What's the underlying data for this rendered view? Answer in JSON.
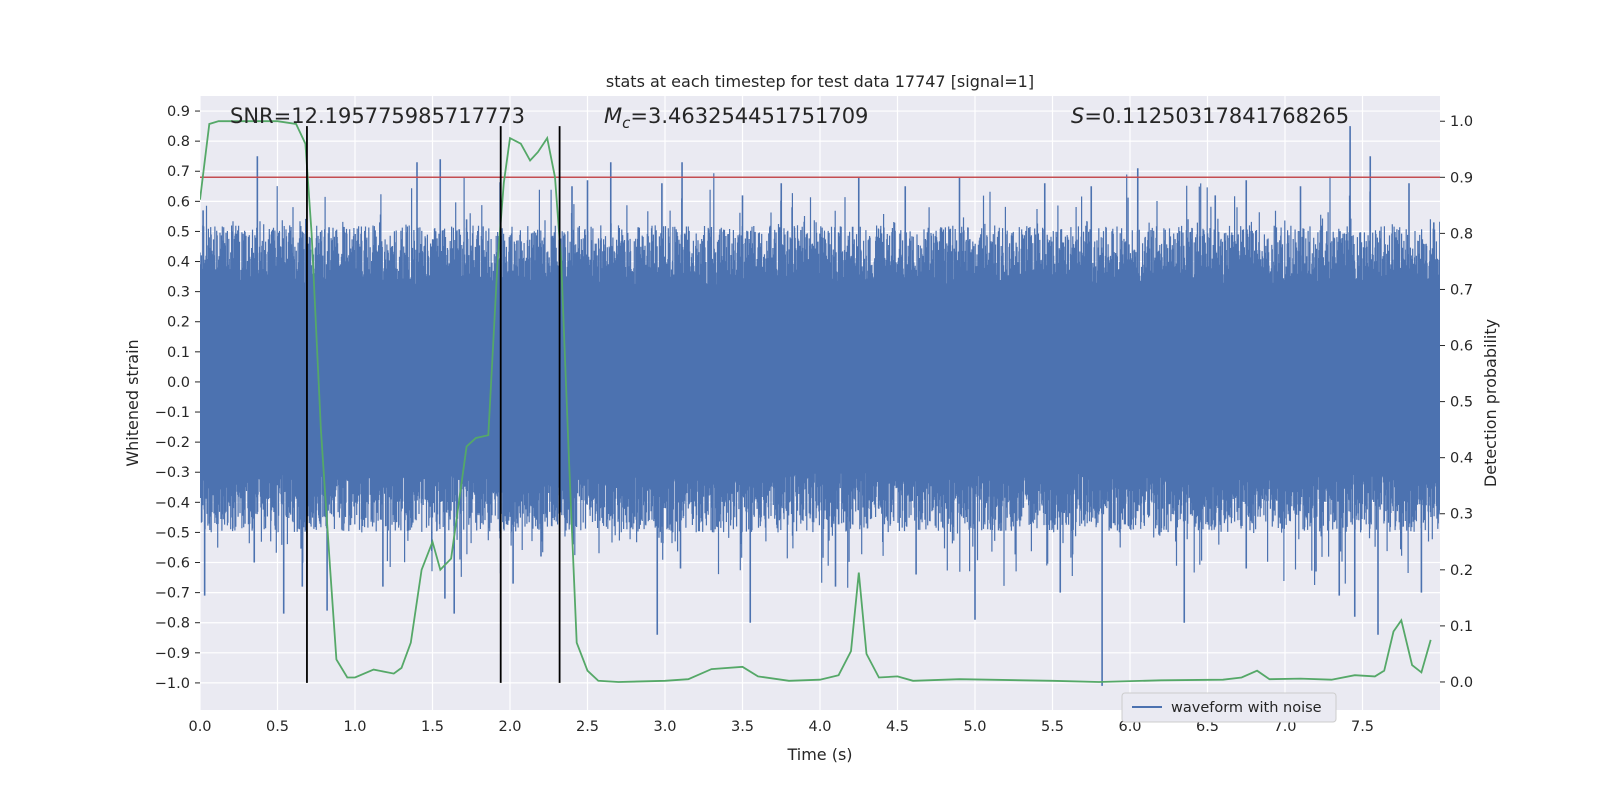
{
  "chart_data": {
    "type": "line",
    "title": "stats at each timestep for test data 17747 [signal=1]",
    "xlabel": "Time (s)",
    "ylabel": "Whitened strain",
    "y2label": "Detection probability",
    "xlim": [
      0.0,
      8.0
    ],
    "ylim": [
      -1.09,
      0.95
    ],
    "y2lim": [
      -0.05,
      1.045
    ],
    "xticks": [
      "0.0",
      "0.5",
      "1.0",
      "1.5",
      "2.0",
      "2.5",
      "3.0",
      "3.5",
      "4.0",
      "4.5",
      "5.0",
      "5.5",
      "6.0",
      "6.5",
      "7.0",
      "7.5"
    ],
    "yticks": [
      "0.9",
      "0.8",
      "0.7",
      "0.6",
      "0.5",
      "0.4",
      "0.3",
      "0.2",
      "0.1",
      "0.0",
      "−0.1",
      "−0.2",
      "−0.3",
      "−0.4",
      "−0.5",
      "−0.6",
      "−0.7",
      "−0.8",
      "−0.9",
      "−1.0"
    ],
    "y2ticks": [
      "0.0",
      "0.1",
      "0.2",
      "0.3",
      "0.4",
      "0.5",
      "0.6",
      "0.7",
      "0.8",
      "0.9",
      "1.0"
    ],
    "grid": true,
    "legend": {
      "location": "lower-right",
      "entries": [
        "waveform with noise"
      ]
    },
    "annotations": {
      "snr": "SNR=12.195775985717773",
      "mc_symbol": "M",
      "mc_sub": "c",
      "mc_value": "=3.463254451751709",
      "s_symbol": "S",
      "s_value": "=0.11250317841768265"
    },
    "threshold": {
      "value": 0.9,
      "axis": "y2",
      "color": "#c44e52"
    },
    "vertical_lines": [
      0.69,
      1.94,
      2.32
    ],
    "vline_range": [
      -1.0,
      0.85
    ],
    "waveform": {
      "name": "waveform with noise",
      "color": "#4c72b0",
      "dense_band": [
        -0.3,
        0.32
      ],
      "spikes_up": [
        [
          0.02,
          0.57
        ],
        [
          0.15,
          0.47
        ],
        [
          0.37,
          0.75
        ],
        [
          0.6,
          0.48
        ],
        [
          1.16,
          0.53
        ],
        [
          1.4,
          0.73
        ],
        [
          1.55,
          0.74
        ],
        [
          1.72,
          0.54
        ],
        [
          2.4,
          0.65
        ],
        [
          2.5,
          0.67
        ],
        [
          2.65,
          0.73
        ],
        [
          2.98,
          0.66
        ],
        [
          3.11,
          0.73
        ],
        [
          3.5,
          0.62
        ],
        [
          3.75,
          0.66
        ],
        [
          4.25,
          0.68
        ],
        [
          4.55,
          0.65
        ],
        [
          4.9,
          0.68
        ],
        [
          5.45,
          0.66
        ],
        [
          5.75,
          0.65
        ],
        [
          6.05,
          0.71
        ],
        [
          6.55,
          0.62
        ],
        [
          6.75,
          0.67
        ],
        [
          7.1,
          0.65
        ],
        [
          7.42,
          0.85
        ],
        [
          7.55,
          0.75
        ],
        [
          7.8,
          0.66
        ],
        [
          7.96,
          0.53
        ]
      ],
      "spikes_down": [
        [
          0.03,
          -0.71
        ],
        [
          0.35,
          -0.6
        ],
        [
          0.54,
          -0.77
        ],
        [
          0.66,
          -0.68
        ],
        [
          0.82,
          -0.76
        ],
        [
          1.18,
          -0.68
        ],
        [
          1.58,
          -0.72
        ],
        [
          1.64,
          -0.77
        ],
        [
          2.02,
          -0.67
        ],
        [
          2.2,
          -0.58
        ],
        [
          2.95,
          -0.84
        ],
        [
          3.1,
          -0.62
        ],
        [
          3.55,
          -0.8
        ],
        [
          4.1,
          -0.68
        ],
        [
          4.62,
          -0.64
        ],
        [
          5.0,
          -0.79
        ],
        [
          5.55,
          -0.7
        ],
        [
          5.82,
          -1.01
        ],
        [
          6.35,
          -0.8
        ],
        [
          6.75,
          -0.62
        ],
        [
          7.2,
          -0.63
        ],
        [
          7.35,
          -0.71
        ],
        [
          7.45,
          -0.78
        ],
        [
          7.6,
          -0.84
        ],
        [
          7.88,
          -0.7
        ]
      ]
    },
    "probability": {
      "color": "#55a868",
      "points": [
        [
          0.0,
          0.86
        ],
        [
          0.06,
          0.995
        ],
        [
          0.12,
          1.0
        ],
        [
          0.3,
          1.0
        ],
        [
          0.5,
          1.0
        ],
        [
          0.62,
          0.995
        ],
        [
          0.68,
          0.96
        ],
        [
          0.72,
          0.8
        ],
        [
          0.78,
          0.45
        ],
        [
          0.84,
          0.2
        ],
        [
          0.88,
          0.04
        ],
        [
          0.95,
          0.008
        ],
        [
          1.0,
          0.008
        ],
        [
          1.12,
          0.022
        ],
        [
          1.25,
          0.015
        ],
        [
          1.3,
          0.025
        ],
        [
          1.36,
          0.07
        ],
        [
          1.43,
          0.2
        ],
        [
          1.5,
          0.25
        ],
        [
          1.55,
          0.2
        ],
        [
          1.62,
          0.22
        ],
        [
          1.66,
          0.3
        ],
        [
          1.72,
          0.42
        ],
        [
          1.78,
          0.435
        ],
        [
          1.86,
          0.44
        ],
        [
          1.92,
          0.75
        ],
        [
          1.96,
          0.89
        ],
        [
          2.0,
          0.97
        ],
        [
          2.07,
          0.96
        ],
        [
          2.13,
          0.93
        ],
        [
          2.18,
          0.945
        ],
        [
          2.24,
          0.97
        ],
        [
          2.29,
          0.9
        ],
        [
          2.33,
          0.75
        ],
        [
          2.38,
          0.4
        ],
        [
          2.43,
          0.07
        ],
        [
          2.5,
          0.02
        ],
        [
          2.57,
          0.002
        ],
        [
          2.7,
          0.0
        ],
        [
          3.0,
          0.002
        ],
        [
          3.15,
          0.005
        ],
        [
          3.3,
          0.023
        ],
        [
          3.5,
          0.027
        ],
        [
          3.6,
          0.01
        ],
        [
          3.8,
          0.002
        ],
        [
          4.0,
          0.004
        ],
        [
          4.12,
          0.012
        ],
        [
          4.2,
          0.055
        ],
        [
          4.25,
          0.195
        ],
        [
          4.3,
          0.05
        ],
        [
          4.38,
          0.008
        ],
        [
          4.5,
          0.01
        ],
        [
          4.6,
          0.002
        ],
        [
          4.9,
          0.005
        ],
        [
          5.5,
          0.002
        ],
        [
          5.8,
          0.0
        ],
        [
          6.2,
          0.003
        ],
        [
          6.6,
          0.004
        ],
        [
          6.72,
          0.008
        ],
        [
          6.82,
          0.02
        ],
        [
          6.9,
          0.005
        ],
        [
          7.1,
          0.006
        ],
        [
          7.3,
          0.004
        ],
        [
          7.45,
          0.012
        ],
        [
          7.58,
          0.01
        ],
        [
          7.64,
          0.02
        ],
        [
          7.7,
          0.09
        ],
        [
          7.75,
          0.11
        ],
        [
          7.82,
          0.03
        ],
        [
          7.88,
          0.017
        ],
        [
          7.94,
          0.075
        ]
      ]
    }
  }
}
